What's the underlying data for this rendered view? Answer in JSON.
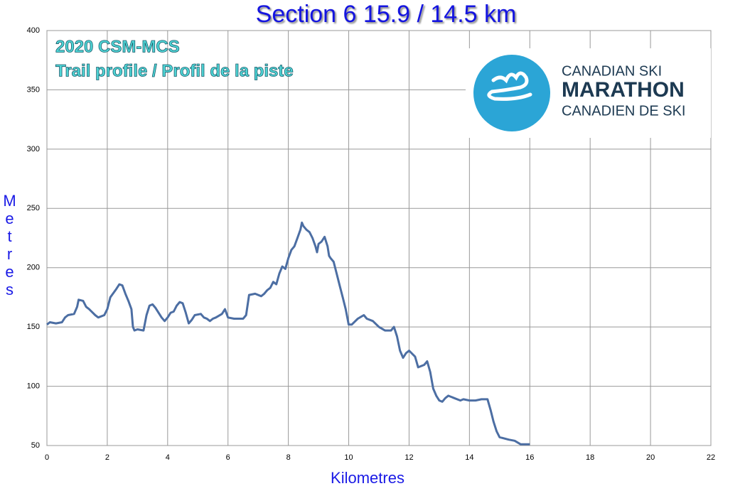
{
  "chart_data": {
    "type": "line",
    "title": "Section 6  15.9 / 14.5 km",
    "annotations": [
      "2020 CSM-MCS",
      "Trail profile / Profil de la piste"
    ],
    "logo_text": [
      "CANADIAN SKI",
      "MARATHON",
      "CANADIEN DE SKI"
    ],
    "x_label": "Kilometres",
    "y_label": "Metres",
    "color": "#4c6ea3",
    "grid": true,
    "xlim": [
      0,
      22
    ],
    "ylim": [
      50,
      400
    ],
    "xticks": [
      0,
      2,
      4,
      6,
      8,
      10,
      12,
      14,
      16,
      18,
      20,
      22
    ],
    "yticks": [
      50,
      100,
      150,
      200,
      250,
      300,
      350,
      400
    ],
    "x": [
      0,
      0.1,
      0.3,
      0.5,
      0.6,
      0.7,
      0.9,
      1.0,
      1.05,
      1.2,
      1.3,
      1.4,
      1.6,
      1.7,
      1.9,
      2.0,
      2.1,
      2.3,
      2.4,
      2.5,
      2.6,
      2.7,
      2.8,
      2.85,
      2.9,
      3.0,
      3.2,
      3.3,
      3.4,
      3.5,
      3.6,
      3.8,
      3.9,
      4.0,
      4.1,
      4.2,
      4.3,
      4.4,
      4.5,
      4.6,
      4.7,
      4.8,
      4.9,
      5.1,
      5.2,
      5.3,
      5.4,
      5.5,
      5.6,
      5.8,
      5.9,
      6.0,
      6.2,
      6.4,
      6.5,
      6.6,
      6.7,
      6.9,
      7.1,
      7.2,
      7.3,
      7.4,
      7.5,
      7.6,
      7.7,
      7.8,
      7.9,
      8.0,
      8.1,
      8.2,
      8.3,
      8.4,
      8.45,
      8.5,
      8.6,
      8.7,
      8.8,
      8.9,
      8.95,
      9.0,
      9.1,
      9.2,
      9.3,
      9.35,
      9.4,
      9.5,
      9.6,
      9.7,
      9.8,
      9.9,
      10.0,
      10.1,
      10.3,
      10.5,
      10.6,
      10.8,
      11.0,
      11.2,
      11.4,
      11.5,
      11.6,
      11.7,
      11.8,
      11.9,
      12.0,
      12.2,
      12.3,
      12.5,
      12.6,
      12.7,
      12.8,
      12.9,
      13.0,
      13.1,
      13.2,
      13.3,
      13.5,
      13.7,
      13.8,
      14.0,
      14.2,
      14.4,
      14.6,
      14.7,
      14.8,
      14.9,
      15.0,
      15.3,
      15.5,
      15.7,
      16.0
    ],
    "values": [
      152,
      154,
      153,
      154,
      158,
      160,
      161,
      167,
      173,
      172,
      167,
      165,
      160,
      158,
      160,
      165,
      175,
      182,
      186,
      185,
      178,
      172,
      165,
      150,
      147,
      148,
      147,
      160,
      168,
      169,
      166,
      158,
      155,
      158,
      162,
      163,
      168,
      171,
      170,
      162,
      153,
      156,
      160,
      161,
      158,
      157,
      155,
      157,
      158,
      161,
      165,
      158,
      157,
      157,
      157,
      160,
      177,
      178,
      176,
      178,
      181,
      183,
      188,
      186,
      195,
      201,
      199,
      208,
      215,
      218,
      225,
      232,
      238,
      235,
      232,
      230,
      225,
      218,
      213,
      220,
      222,
      226,
      218,
      210,
      208,
      205,
      195,
      185,
      175,
      165,
      152,
      152,
      157,
      160,
      157,
      155,
      150,
      147,
      147,
      150,
      142,
      130,
      124,
      128,
      130,
      125,
      116,
      118,
      121,
      112,
      98,
      92,
      88,
      87,
      90,
      92,
      90,
      88,
      89,
      88,
      88,
      89,
      89,
      80,
      70,
      62,
      57,
      55,
      54,
      51,
      51
    ]
  }
}
